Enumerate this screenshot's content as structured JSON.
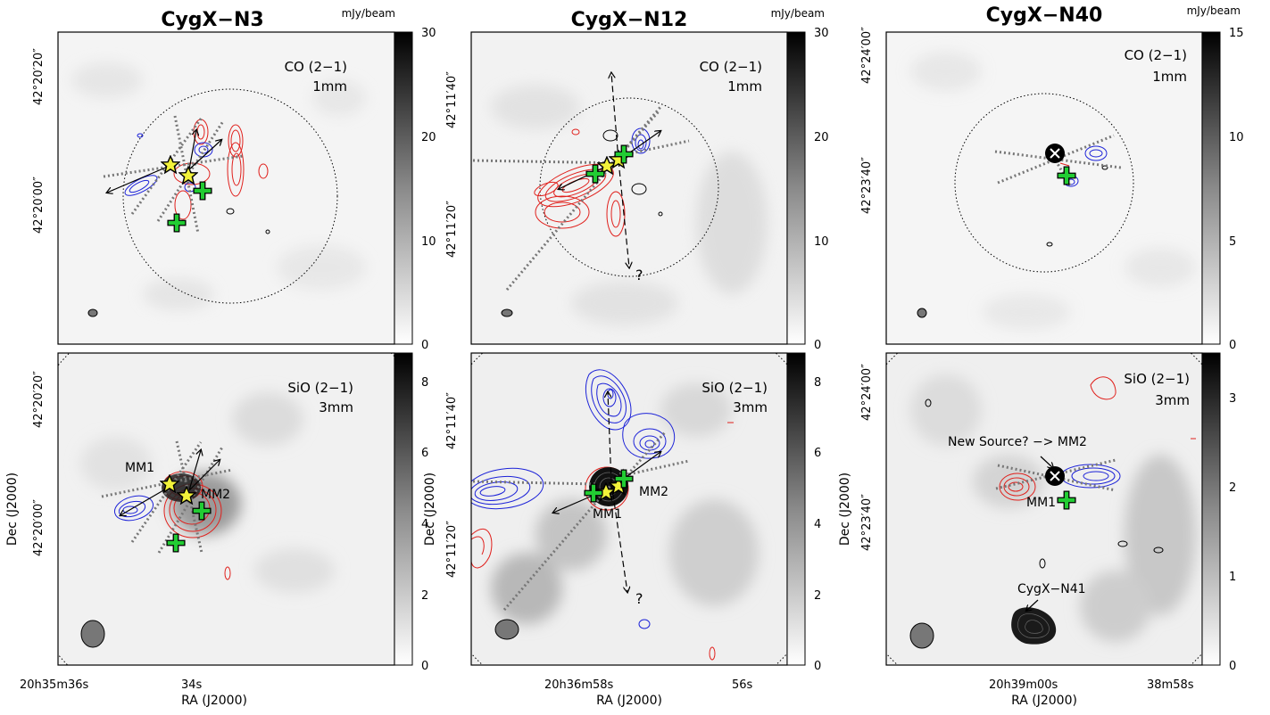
{
  "figure": {
    "panels": [
      {
        "title": "CygX−N3",
        "unit": "mJy/beam",
        "ra_ticks": [
          "20h35m36s",
          "34s"
        ],
        "dec_ticks_top": [
          "42°20′20″",
          "42°20′00″"
        ],
        "dec_ticks_bottom": [
          "42°20′20″",
          "42°20′00″"
        ],
        "colorbar_top": {
          "ticks": [
            "0",
            "10",
            "20",
            "30"
          ],
          "max": 30
        },
        "colorbar_bottom": {
          "ticks": [
            "0",
            "2",
            "4",
            "6",
            "8"
          ],
          "max": 8.8
        },
        "label_top": [
          "CO (2−1)",
          "1mm"
        ],
        "label_bottom": [
          "SiO (2−1)",
          "3mm"
        ],
        "sources": [
          "MM1",
          "MM2"
        ]
      },
      {
        "title": "CygX−N12",
        "unit": "mJy/beam",
        "ra_ticks": [
          "20h36m58s",
          "56s"
        ],
        "dec_ticks_top": [
          "42°11′40″",
          "42°11′20″"
        ],
        "dec_ticks_bottom": [
          "42°11′40″",
          "42°11′20″"
        ],
        "colorbar_top": {
          "ticks": [
            "0",
            "10",
            "20",
            "30"
          ],
          "max": 30
        },
        "colorbar_bottom": {
          "ticks": [
            "0",
            "2",
            "4",
            "6",
            "8"
          ],
          "max": 8.8
        },
        "label_top": [
          "CO (2−1)",
          "1mm"
        ],
        "label_bottom": [
          "SiO (2−1)",
          "3mm"
        ],
        "sources": [
          "MM1",
          "MM2"
        ],
        "question_mark": "?"
      },
      {
        "title": "CygX−N40",
        "unit": "mJy/beam",
        "ra_ticks": [
          "20h39m00s",
          "38m58s"
        ],
        "dec_ticks_top": [
          "42°24′00″",
          "42°23′40″"
        ],
        "dec_ticks_bottom": [
          "42°24′00″",
          "42°23′40″"
        ],
        "colorbar_top": {
          "ticks": [
            "0",
            "5",
            "10",
            "15"
          ],
          "max": 15
        },
        "colorbar_bottom": {
          "ticks": [
            "0",
            "1",
            "2",
            "3"
          ],
          "max": 3.5
        },
        "label_top": [
          "CO (2−1)",
          "1mm"
        ],
        "label_bottom": [
          "SiO (2−1)",
          "3mm"
        ],
        "sources": [
          "MM1"
        ],
        "new_source_label": "New Source? −> MM2",
        "neighbor_label": "CygX−N41"
      }
    ],
    "xlabel": "RA (J2000)",
    "ylabel": "Dec (J2000)",
    "colors": {
      "red_lobe": "#e0201c",
      "blue_lobe": "#1c22d8",
      "star": "#f2f23a",
      "cross": "#22cc33",
      "outflow_axis": "#777777"
    }
  }
}
